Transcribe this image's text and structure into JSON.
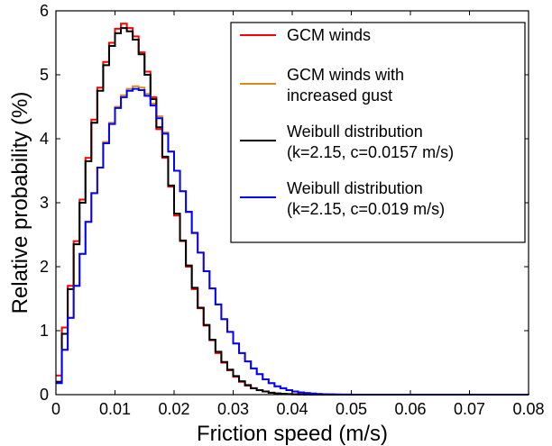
{
  "chart_data": {
    "type": "line",
    "xlabel": "Friction speed (m/s)",
    "ylabel": "Relative probability (%)",
    "xlim": [
      0,
      0.08
    ],
    "ylim": [
      0,
      6
    ],
    "xticks": [
      "0",
      "0.01",
      "0.02",
      "0.03",
      "0.04",
      "0.05",
      "0.06",
      "0.07",
      "0.08"
    ],
    "yticks": [
      "0",
      "1",
      "2",
      "3",
      "4",
      "5",
      "6"
    ],
    "bin_width": 0.001,
    "grid": false,
    "legend_position": "top-right",
    "series": [
      {
        "name": "GCM winds",
        "color": "#ff0000",
        "x": [
          0.0,
          0.001,
          0.002,
          0.003,
          0.004,
          0.005,
          0.006,
          0.007,
          0.008,
          0.009,
          0.01,
          0.011,
          0.012,
          0.013,
          0.014,
          0.015,
          0.016,
          0.017,
          0.018,
          0.019,
          0.02,
          0.021,
          0.022,
          0.023,
          0.024,
          0.025,
          0.026,
          0.027,
          0.028,
          0.029,
          0.03,
          0.031,
          0.032,
          0.033,
          0.034,
          0.035,
          0.036,
          0.037,
          0.038,
          0.039,
          0.04,
          0.041,
          0.042,
          0.043,
          0.044,
          0.045,
          0.046,
          0.047,
          0.048,
          0.049,
          0.05,
          0.08
        ],
        "y": [
          0.3,
          1.05,
          1.7,
          2.4,
          3.05,
          3.7,
          4.3,
          4.8,
          5.2,
          5.5,
          5.72,
          5.8,
          5.73,
          5.6,
          5.35,
          5.05,
          4.65,
          4.15,
          3.7,
          3.25,
          2.8,
          2.4,
          2.0,
          1.65,
          1.35,
          1.08,
          0.85,
          0.65,
          0.5,
          0.38,
          0.28,
          0.2,
          0.14,
          0.1,
          0.07,
          0.05,
          0.03,
          0.02,
          0.013,
          0.008,
          0.005,
          0.003,
          0.002,
          0.001,
          0.001,
          0,
          0,
          0,
          0,
          0,
          0,
          0
        ]
      },
      {
        "name": "GCM winds with increased gust",
        "color": "#d98b1a",
        "x": [
          0.0,
          0.001,
          0.002,
          0.003,
          0.004,
          0.005,
          0.006,
          0.007,
          0.008,
          0.009,
          0.01,
          0.011,
          0.012,
          0.013,
          0.014,
          0.015,
          0.016,
          0.017,
          0.018,
          0.019,
          0.02,
          0.021,
          0.022,
          0.023,
          0.024,
          0.025,
          0.026,
          0.027,
          0.028,
          0.029,
          0.03,
          0.031,
          0.032,
          0.033,
          0.034,
          0.035,
          0.036,
          0.037,
          0.038,
          0.039,
          0.04,
          0.041,
          0.042,
          0.043,
          0.044,
          0.045,
          0.046,
          0.047,
          0.048,
          0.049,
          0.05,
          0.08
        ],
        "y": [
          0.2,
          0.7,
          1.2,
          1.7,
          2.2,
          2.7,
          3.15,
          3.55,
          3.95,
          4.25,
          4.5,
          4.68,
          4.78,
          4.82,
          4.8,
          4.7,
          4.55,
          4.35,
          4.1,
          3.8,
          3.5,
          3.18,
          2.85,
          2.52,
          2.22,
          1.93,
          1.66,
          1.41,
          1.18,
          0.98,
          0.8,
          0.65,
          0.52,
          0.41,
          0.32,
          0.24,
          0.18,
          0.13,
          0.1,
          0.07,
          0.05,
          0.035,
          0.025,
          0.017,
          0.011,
          0.007,
          0.005,
          0.003,
          0.002,
          0.001,
          0.0005,
          0
        ]
      },
      {
        "name": "Weibull distribution (k=2.15, c=0.0157 m/s)",
        "color": "#000000",
        "x": [
          0.0,
          0.001,
          0.002,
          0.003,
          0.004,
          0.005,
          0.006,
          0.007,
          0.008,
          0.009,
          0.01,
          0.011,
          0.012,
          0.013,
          0.014,
          0.015,
          0.016,
          0.017,
          0.018,
          0.019,
          0.02,
          0.021,
          0.022,
          0.023,
          0.024,
          0.025,
          0.026,
          0.027,
          0.028,
          0.029,
          0.03,
          0.031,
          0.032,
          0.033,
          0.034,
          0.035,
          0.036,
          0.037,
          0.038,
          0.039,
          0.04,
          0.041,
          0.042,
          0.043,
          0.044,
          0.045,
          0.046,
          0.047,
          0.048,
          0.049,
          0.05,
          0.08
        ],
        "y": [
          0.2,
          0.95,
          1.65,
          2.35,
          3.0,
          3.65,
          4.25,
          4.75,
          5.15,
          5.45,
          5.65,
          5.73,
          5.68,
          5.55,
          5.32,
          5.0,
          4.62,
          4.18,
          3.72,
          3.27,
          2.83,
          2.41,
          2.02,
          1.67,
          1.36,
          1.09,
          0.86,
          0.67,
          0.51,
          0.39,
          0.29,
          0.21,
          0.15,
          0.1,
          0.07,
          0.05,
          0.03,
          0.02,
          0.013,
          0.008,
          0.005,
          0.003,
          0.002,
          0.001,
          0.001,
          0,
          0,
          0,
          0,
          0,
          0,
          0
        ]
      },
      {
        "name": "Weibull distribution (k=2.15, c=0.019 m/s)",
        "color": "#0000ff",
        "x": [
          0.0,
          0.001,
          0.002,
          0.003,
          0.004,
          0.005,
          0.006,
          0.007,
          0.008,
          0.009,
          0.01,
          0.011,
          0.012,
          0.013,
          0.014,
          0.015,
          0.016,
          0.017,
          0.018,
          0.019,
          0.02,
          0.021,
          0.022,
          0.023,
          0.024,
          0.025,
          0.026,
          0.027,
          0.028,
          0.029,
          0.03,
          0.031,
          0.032,
          0.033,
          0.034,
          0.035,
          0.036,
          0.037,
          0.038,
          0.039,
          0.04,
          0.041,
          0.042,
          0.043,
          0.044,
          0.045,
          0.046,
          0.047,
          0.048,
          0.049,
          0.05,
          0.08
        ],
        "y": [
          0.18,
          0.7,
          1.2,
          1.7,
          2.2,
          2.7,
          3.15,
          3.55,
          3.93,
          4.23,
          4.48,
          4.65,
          4.75,
          4.78,
          4.76,
          4.67,
          4.52,
          4.32,
          4.08,
          3.8,
          3.5,
          3.18,
          2.86,
          2.53,
          2.22,
          1.93,
          1.66,
          1.41,
          1.18,
          0.98,
          0.8,
          0.65,
          0.52,
          0.41,
          0.32,
          0.24,
          0.18,
          0.13,
          0.1,
          0.07,
          0.05,
          0.035,
          0.025,
          0.017,
          0.011,
          0.007,
          0.005,
          0.003,
          0.002,
          0.001,
          0.0005,
          0
        ]
      }
    ],
    "legend_lines": [
      [
        "GCM winds"
      ],
      [
        "GCM winds with",
        "increased gust"
      ],
      [
        "Weibull distribution",
        "(k=2.15, c=0.0157 m/s)"
      ],
      [
        "Weibull distribution",
        "(k=2.15, c=0.019 m/s)"
      ]
    ]
  }
}
